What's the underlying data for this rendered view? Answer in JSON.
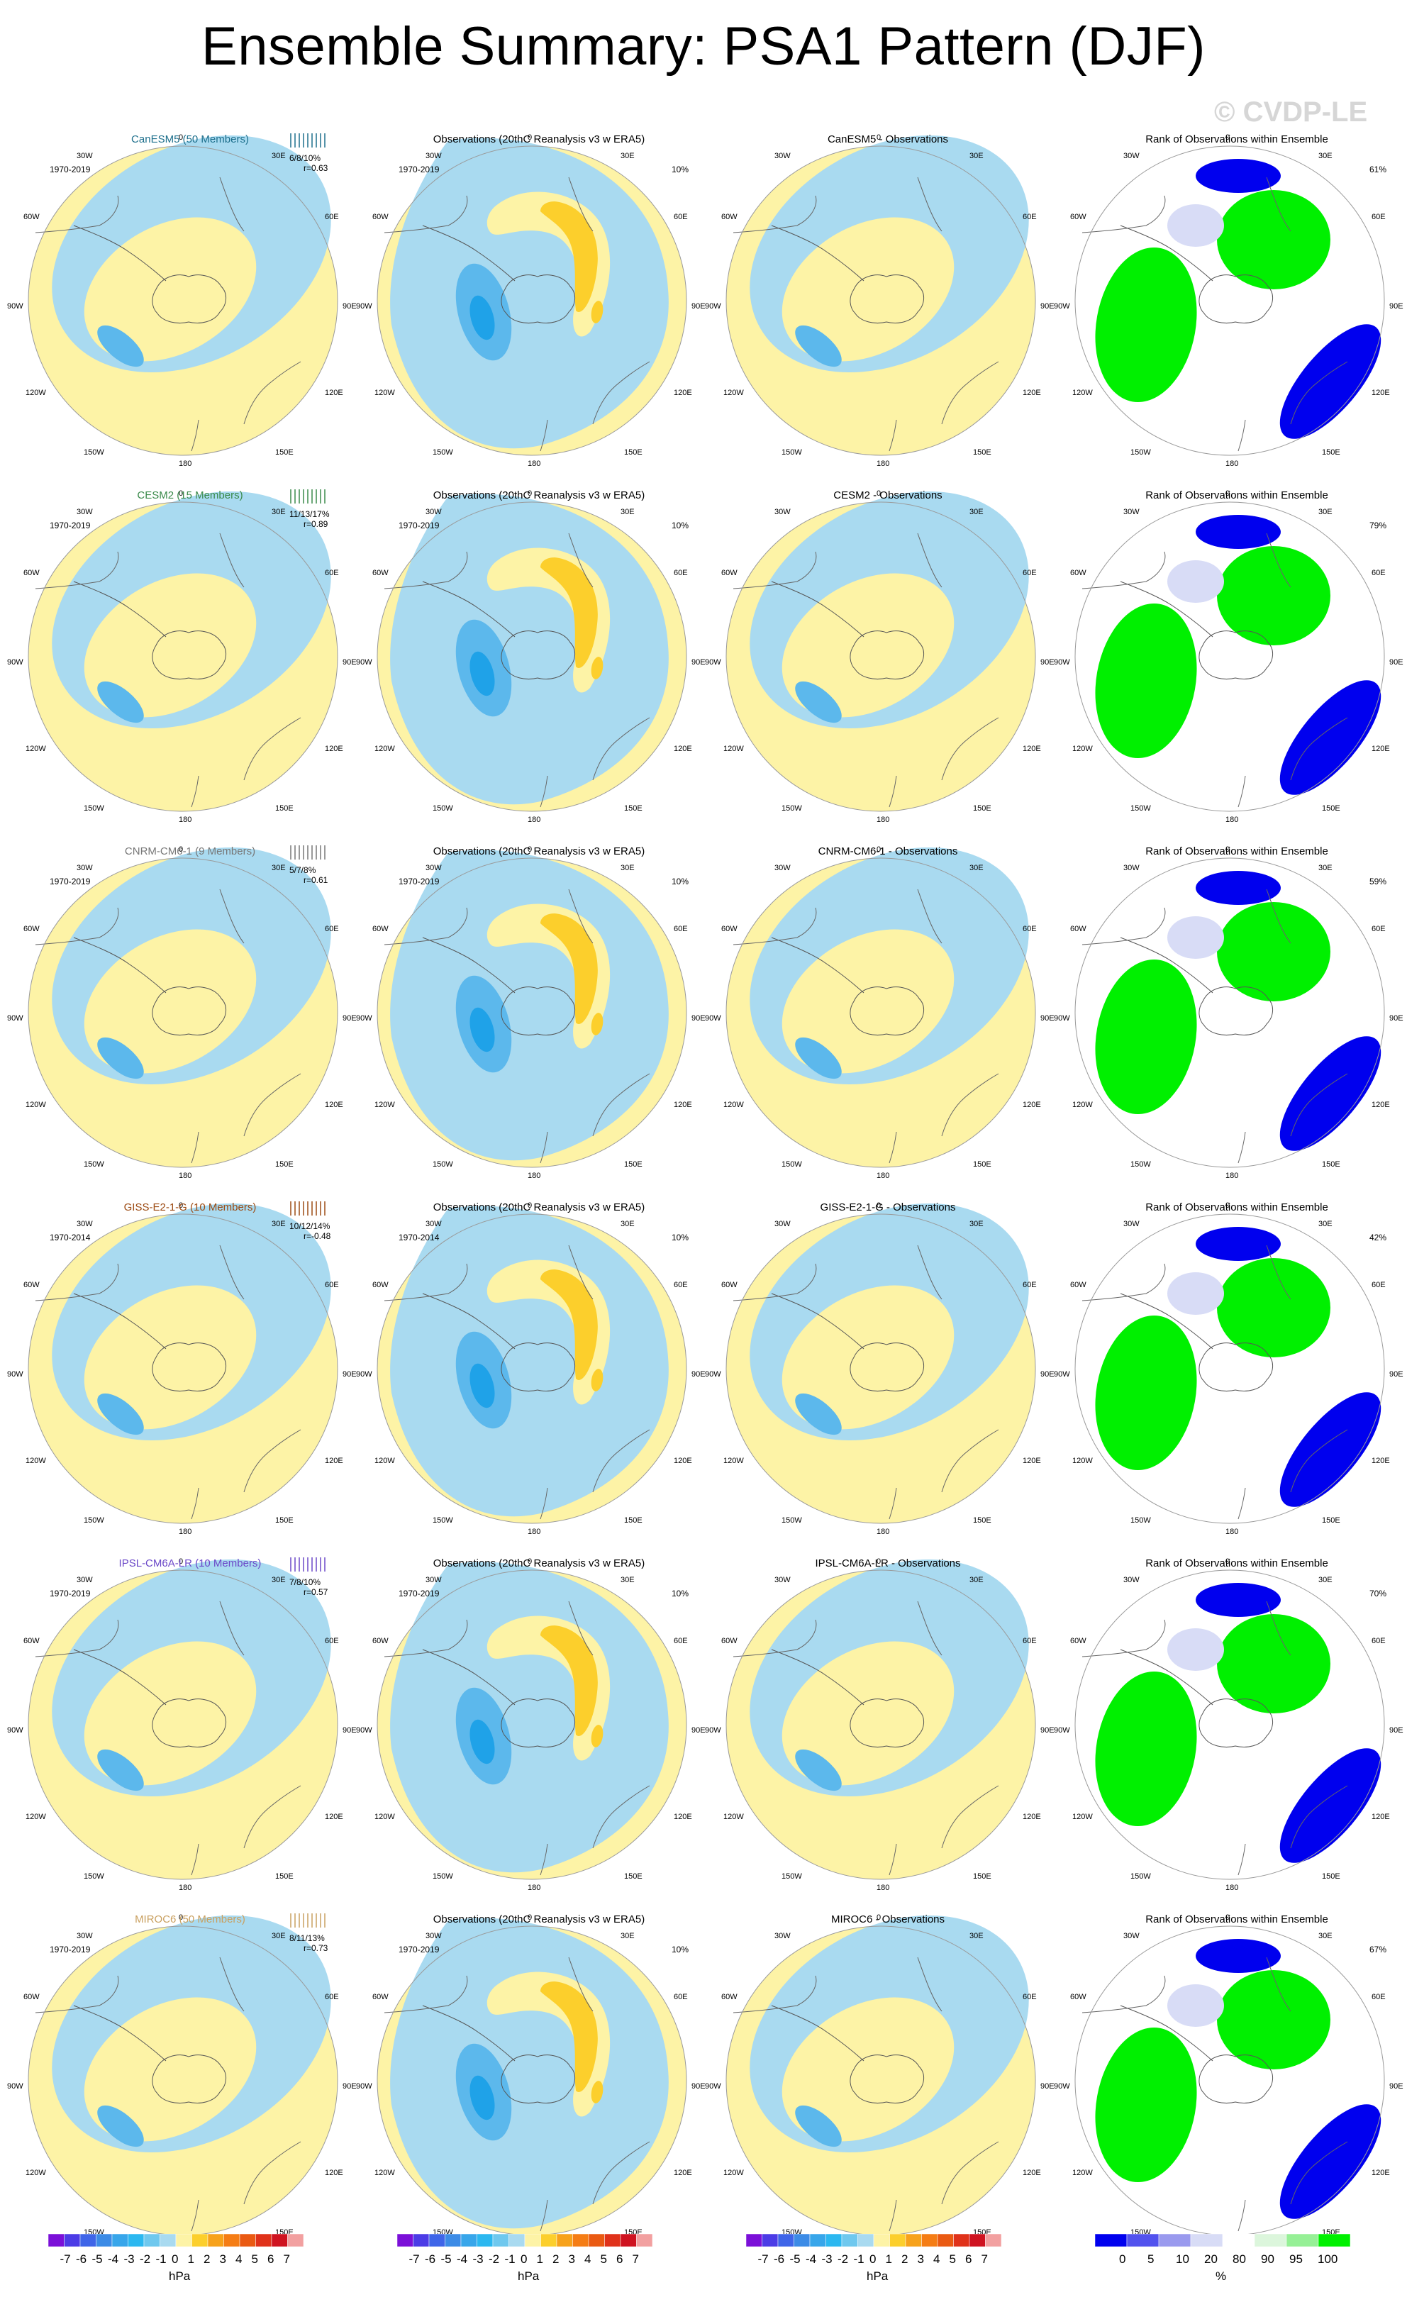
{
  "title": "Ensemble Summary: PSA1 Pattern (DJF)",
  "watermark": "© CVDP-LE",
  "lon_labels": [
    "0",
    "30E",
    "60E",
    "90E",
    "120E",
    "150E",
    "180",
    "150W",
    "120W",
    "90W",
    "60W",
    "30W"
  ],
  "obs_title": "Observations (20thC Reanalysis v3 w ERA5)",
  "rank_title": "Rank of Observations within Ensemble",
  "colors": {
    "neg3": "#1fa2e8",
    "neg2": "#5cb8ec",
    "neg1": "#a9daf0",
    "pos1": "#fdf3a6",
    "pos2": "#fccf2c",
    "pos3": "#f7a21b",
    "pos4": "#ea5a12",
    "rank_low": "#0000ee",
    "rank_mid": "#d8dcf6",
    "rank_high": "#00f000",
    "rank_pale": "#c8f5c8"
  },
  "rows": [
    {
      "model": "CanESM5 (50 Members)",
      "model_short": "CanESM5",
      "color": "#1d6f8c",
      "period": "1970-2019",
      "stats": "6/8/10%",
      "r": "r=0.63",
      "obs_pct": "10%",
      "rank_pct": "61%"
    },
    {
      "model": "CESM2 (15 Members)",
      "model_short": "CESM2",
      "color": "#3a8a4a",
      "period": "1970-2019",
      "stats": "11/13/17%",
      "r": "r=0.89",
      "obs_pct": "10%",
      "rank_pct": "79%"
    },
    {
      "model": "CNRM-CM6-1 (9 Members)",
      "model_short": "CNRM-CM6-1",
      "color": "#777777",
      "period": "1970-2019",
      "stats": "5/7/8%",
      "r": "r=0.61",
      "obs_pct": "10%",
      "rank_pct": "59%"
    },
    {
      "model": "GISS-E2-1-G (10 Members)",
      "model_short": "GISS-E2-1-G",
      "color": "#9c4a12",
      "period": "1970-2014",
      "stats": "10/12/14%",
      "r": "r=-0.48",
      "obs_pct": "10%",
      "rank_pct": "42%"
    },
    {
      "model": "IPSL-CM6A-LR (10 Members)",
      "model_short": "IPSL-CM6A-LR",
      "color": "#6b48c8",
      "period": "1970-2019",
      "stats": "7/8/10%",
      "r": "r=0.57",
      "obs_pct": "10%",
      "rank_pct": "70%"
    },
    {
      "model": "MIROC6 (50 Members)",
      "model_short": "MIROC6",
      "color": "#c9a060",
      "period": "1970-2019",
      "stats": "8/11/13%",
      "r": "r=0.73",
      "obs_pct": "10%",
      "rank_pct": "67%"
    }
  ],
  "diff_suffix": " - Observations",
  "colorbar_anom": {
    "labels": [
      "-7",
      "-6",
      "-5",
      "-4",
      "-3",
      "-2",
      "-1",
      "0",
      "1",
      "2",
      "3",
      "4",
      "5",
      "6",
      "7"
    ],
    "unit": "hPa",
    "colors": [
      "#7b10d8",
      "#4c3ce6",
      "#3f65e8",
      "#3c8be6",
      "#38a6ea",
      "#2cb8f0",
      "#6fc8ee",
      "#a9daf0",
      "#fdf3a6",
      "#fccf2c",
      "#f7a21b",
      "#f57d15",
      "#ea5a12",
      "#e0321a",
      "#cf1320",
      "#f2a0a0"
    ]
  },
  "colorbar_rank": {
    "labels": [
      "0",
      "5",
      "10",
      "20",
      "80",
      "90",
      "95",
      "100"
    ],
    "unit": "%",
    "colors": [
      "#0000ee",
      "#5252ee",
      "#9a9aee",
      "#d8dcf6",
      "#ffffff",
      "#dcf6dc",
      "#96f096",
      "#00f000"
    ]
  }
}
